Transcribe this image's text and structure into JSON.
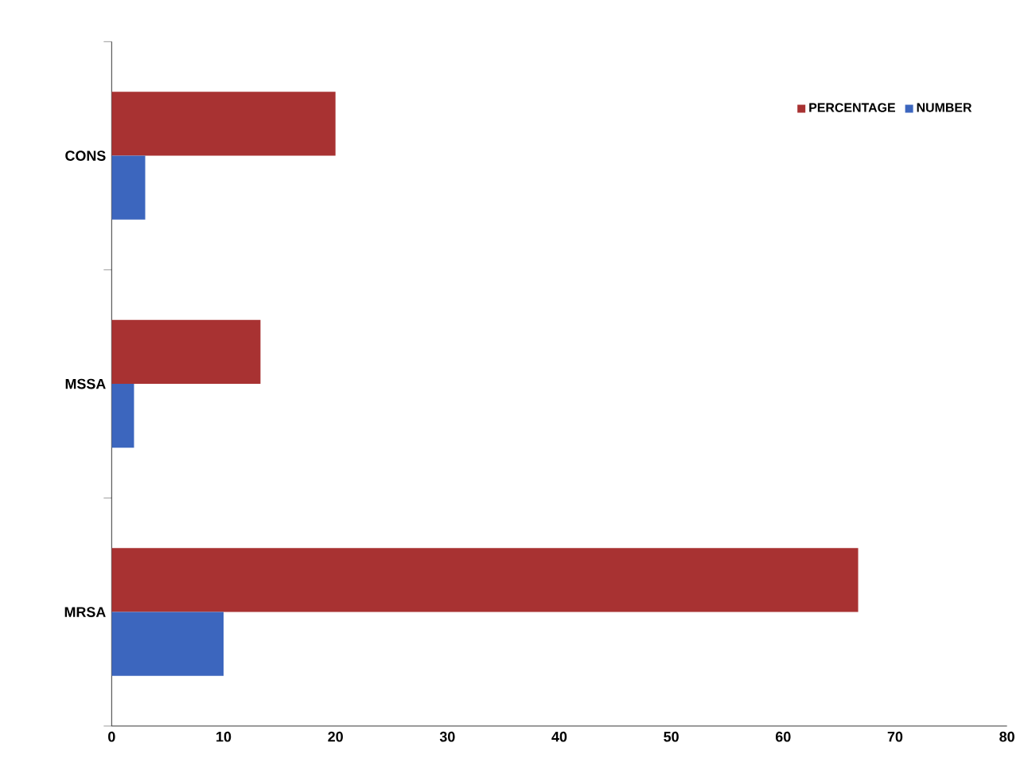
{
  "chart_data": {
    "type": "bar",
    "orientation": "horizontal",
    "categories": [
      "CONS",
      "MSSA",
      "MRSA"
    ],
    "series": [
      {
        "name": "PERCENTAGE",
        "color": "#a83232",
        "values": [
          20,
          13.3,
          66.7
        ]
      },
      {
        "name": "NUMBER",
        "color": "#3c66be",
        "values": [
          3,
          2,
          10
        ]
      }
    ],
    "xlim": [
      0,
      80
    ],
    "xticks": [
      0,
      10,
      20,
      30,
      40,
      50,
      60,
      70,
      80
    ],
    "grid": false,
    "legend": "top right"
  }
}
